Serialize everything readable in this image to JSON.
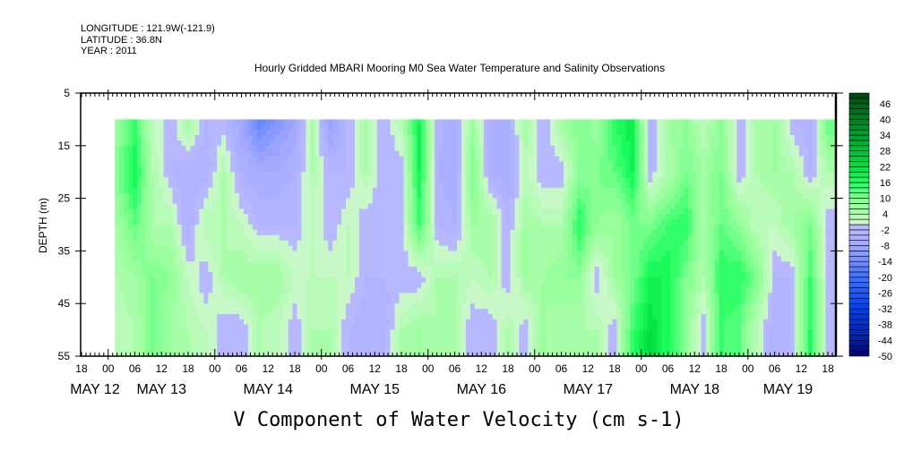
{
  "header": {
    "longitude": "LONGITUDE : 121.9W(-121.9)",
    "latitude": "LATITUDE : 36.8N",
    "year": "YEAR : 2011"
  },
  "chart_data": {
    "type": "heatmap",
    "title": "Hourly Gridded MBARI Mooring M0 Sea Water Temperature and Salinity Observations",
    "xlabel": "V Component of Water Velocity (cm s-1)",
    "ylabel": "DEPTH (m)",
    "x_units": "hours since MAY 13 00:00 2011",
    "xlim": [
      -6.2,
      163.8
    ],
    "ylim": [
      5,
      55
    ],
    "data_xlim": [
      1.5,
      163.8
    ],
    "data_ylim": [
      10,
      55
    ],
    "y_ticks": [
      "5",
      "15",
      "25",
      "35",
      "45",
      "55"
    ],
    "y_tick_values": [
      5,
      15,
      25,
      35,
      45,
      55
    ],
    "x_tick_hours": [
      -6,
      0,
      6,
      12,
      18,
      24,
      30,
      36,
      42,
      48,
      54,
      60,
      66,
      72,
      78,
      84,
      90,
      96,
      102,
      108,
      114,
      120,
      126,
      132,
      138,
      144,
      150,
      156,
      162
    ],
    "x_tick_labels": [
      "18",
      "00",
      "06",
      "12",
      "18",
      "00",
      "06",
      "12",
      "18",
      "00",
      "06",
      "12",
      "18",
      "00",
      "06",
      "12",
      "18",
      "00",
      "06",
      "12",
      "18",
      "00",
      "06",
      "12",
      "18",
      "00",
      "06",
      "12",
      "18"
    ],
    "date_labels": [
      {
        "label": "MAY 12",
        "at_hour": -3.2
      },
      {
        "label": "MAY 13",
        "at_hour": 12
      },
      {
        "label": "MAY 14",
        "at_hour": 36
      },
      {
        "label": "MAY 15",
        "at_hour": 60
      },
      {
        "label": "MAY 16",
        "at_hour": 84
      },
      {
        "label": "MAY 17",
        "at_hour": 108
      },
      {
        "label": "MAY 18",
        "at_hour": 132
      },
      {
        "label": "MAY 19",
        "at_hour": 153
      }
    ],
    "colorbar": {
      "levels_min": -50,
      "levels_max": 50,
      "level_step": 2,
      "labels": [
        "46",
        "40",
        "34",
        "28",
        "22",
        "16",
        "10",
        "4",
        "-2",
        "-8",
        "-14",
        "-20",
        "-26",
        "-32",
        "-38",
        "-44",
        "-50"
      ],
      "label_values": [
        46,
        40,
        34,
        28,
        22,
        16,
        10,
        4,
        -2,
        -8,
        -14,
        -20,
        -26,
        -32,
        -38,
        -44,
        -50
      ]
    },
    "depths": [
      10,
      20,
      30,
      40,
      50
    ],
    "x_hours": [
      2,
      6,
      10,
      14,
      18,
      22,
      26,
      30,
      34,
      38,
      42,
      46,
      50,
      54,
      58,
      62,
      66,
      70,
      74,
      78,
      82,
      86,
      90,
      94,
      98,
      102,
      106,
      110,
      114,
      118,
      122,
      126,
      130,
      134,
      138,
      142,
      146,
      150,
      154,
      158,
      162
    ],
    "values_by_time": [
      [
        6,
        10,
        6,
        4,
        2
      ],
      [
        14,
        18,
        12,
        6,
        4
      ],
      [
        2,
        4,
        4,
        10,
        10
      ],
      [
        -2,
        -2,
        4,
        8,
        6
      ],
      [
        6,
        -4,
        -4,
        2,
        4
      ],
      [
        -2,
        -4,
        4,
        -2,
        2
      ],
      [
        -2,
        4,
        4,
        4,
        -2
      ],
      [
        -8,
        -4,
        2,
        6,
        -2
      ],
      [
        -16,
        -6,
        -2,
        6,
        4
      ],
      [
        -12,
        -6,
        -2,
        6,
        2
      ],
      [
        -8,
        -4,
        -2,
        2,
        -2
      ],
      [
        4,
        4,
        2,
        2,
        4
      ],
      [
        -10,
        -2,
        -2,
        2,
        4
      ],
      [
        -2,
        -2,
        2,
        2,
        -2
      ],
      [
        6,
        4,
        -2,
        -2,
        -4
      ],
      [
        -2,
        -2,
        -2,
        -2,
        -4
      ],
      [
        4,
        -2,
        -2,
        -2,
        4
      ],
      [
        18,
        18,
        14,
        -2,
        6
      ],
      [
        -2,
        -4,
        -2,
        4,
        4
      ],
      [
        -6,
        -6,
        -4,
        4,
        4
      ],
      [
        6,
        10,
        6,
        2,
        -2
      ],
      [
        -4,
        -4,
        6,
        4,
        -2
      ],
      [
        -4,
        -6,
        -2,
        -2,
        4
      ],
      [
        6,
        2,
        6,
        6,
        -2
      ],
      [
        -2,
        -2,
        4,
        6,
        6
      ],
      [
        6,
        -2,
        4,
        8,
        4
      ],
      [
        10,
        8,
        16,
        8,
        4
      ],
      [
        6,
        10,
        8,
        -2,
        4
      ],
      [
        16,
        12,
        6,
        6,
        -2
      ],
      [
        20,
        18,
        10,
        10,
        14
      ],
      [
        -4,
        -2,
        10,
        18,
        22
      ],
      [
        6,
        4,
        14,
        18,
        16
      ],
      [
        8,
        10,
        16,
        10,
        8
      ],
      [
        2,
        6,
        4,
        4,
        -2
      ],
      [
        8,
        10,
        12,
        16,
        14
      ],
      [
        -2,
        -2,
        8,
        16,
        12
      ],
      [
        4,
        4,
        2,
        10,
        2
      ],
      [
        6,
        6,
        2,
        -2,
        -4
      ],
      [
        -2,
        4,
        6,
        -2,
        -2
      ],
      [
        -4,
        -2,
        10,
        14,
        16
      ],
      [
        12,
        4,
        -2,
        -2,
        -2
      ]
    ]
  }
}
